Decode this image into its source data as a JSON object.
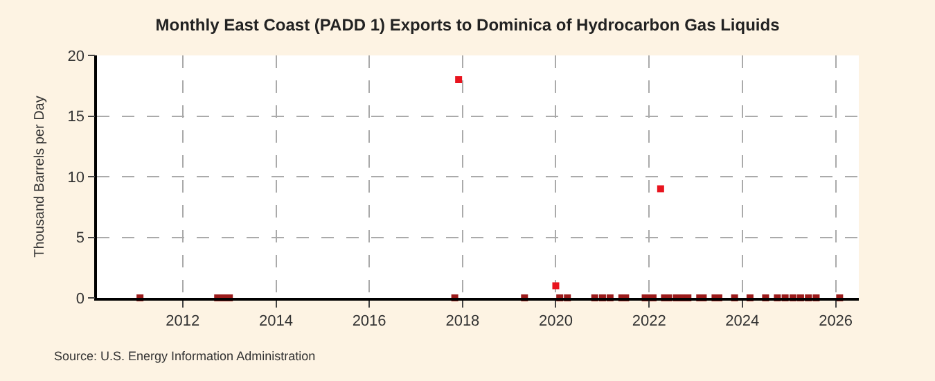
{
  "chart_data": {
    "type": "scatter",
    "title": "Monthly East Coast (PADD 1) Exports to Dominica of Hydrocarbon Gas Liquids",
    "ylabel": "Thousand Barrels per Day",
    "annotations": [
      "Source: U.S. Energy Information Administration"
    ],
    "x": [
      "2011-02",
      "2012-10",
      "2012-11",
      "2012-12",
      "2013-01",
      "2017-11",
      "2017-12",
      "2019-05",
      "2020-01",
      "2020-02",
      "2020-04",
      "2020-11",
      "2021-01",
      "2021-03",
      "2021-06",
      "2021-07",
      "2021-12",
      "2022-01",
      "2022-02",
      "2022-04",
      "2022-05",
      "2022-06",
      "2022-08",
      "2022-09",
      "2022-10",
      "2022-11",
      "2023-02",
      "2023-03",
      "2023-06",
      "2023-07",
      "2023-11",
      "2024-03",
      "2024-07",
      "2024-10",
      "2024-12",
      "2025-02",
      "2025-04",
      "2025-06",
      "2025-08",
      "2026-02"
    ],
    "values": [
      0,
      0,
      0,
      0,
      0,
      0,
      18,
      0,
      1,
      0,
      0,
      0,
      0,
      0,
      0,
      0,
      0,
      0,
      0,
      9,
      0,
      0,
      0,
      0,
      0,
      0,
      0,
      0,
      0,
      0,
      0,
      0,
      0,
      0,
      0,
      0,
      0,
      0,
      0,
      0
    ],
    "colors": [
      "#9b1b1b",
      "#9b1b1b",
      "#9b1b1b",
      "#9b1b1b",
      "#9b1b1b",
      "#9b1b1b",
      "#e8141e",
      "#9b1b1b",
      "#e8141e",
      "#9b1b1b",
      "#9b1b1b",
      "#9b1b1b",
      "#9b1b1b",
      "#9b1b1b",
      "#9b1b1b",
      "#9b1b1b",
      "#9b1b1b",
      "#9b1b1b",
      "#9b1b1b",
      "#e8141e",
      "#9b1b1b",
      "#9b1b1b",
      "#9b1b1b",
      "#9b1b1b",
      "#9b1b1b",
      "#9b1b1b",
      "#9b1b1b",
      "#9b1b1b",
      "#9b1b1b",
      "#9b1b1b",
      "#9b1b1b",
      "#9b1b1b",
      "#9b1b1b",
      "#9b1b1b",
      "#9b1b1b",
      "#9b1b1b",
      "#9b1b1b",
      "#9b1b1b",
      "#9b1b1b",
      "#9b1b1b"
    ],
    "xlim": [
      "2010-03",
      "2026-07"
    ],
    "xticks": [
      "2012",
      "2014",
      "2016",
      "2018",
      "2020",
      "2022",
      "2024",
      "2026"
    ],
    "ylim": [
      0,
      20
    ],
    "yticks": [
      0,
      5,
      10,
      15,
      20
    ],
    "grid": true,
    "marker": "square",
    "legend": false
  }
}
